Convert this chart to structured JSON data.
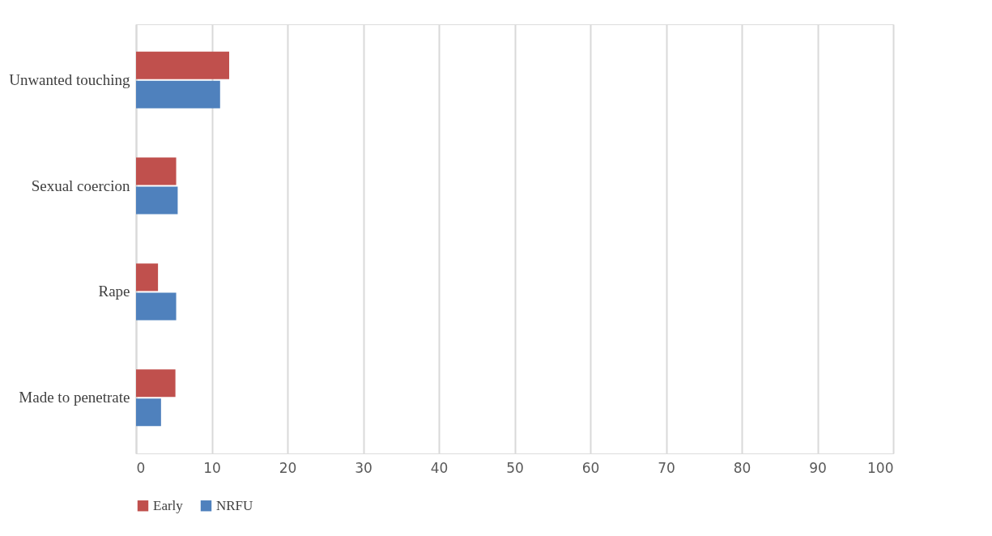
{
  "chart_data": {
    "type": "bar",
    "orientation": "horizontal",
    "categories": [
      "Unwanted touching",
      "Sexual coercion",
      "Rape",
      "Made to penetrate"
    ],
    "series": [
      {
        "name": "Early",
        "color": "#c0504d",
        "values": [
          12.3,
          5.3,
          2.9,
          5.2
        ]
      },
      {
        "name": "NRFU",
        "color": "#4f81bd",
        "values": [
          11.1,
          5.5,
          5.3,
          3.3
        ]
      }
    ],
    "xlim": [
      0,
      100
    ],
    "xticks": [
      0,
      10,
      20,
      30,
      40,
      50,
      60,
      70,
      80,
      90,
      100
    ],
    "grid": "x",
    "legend": "bottom"
  }
}
